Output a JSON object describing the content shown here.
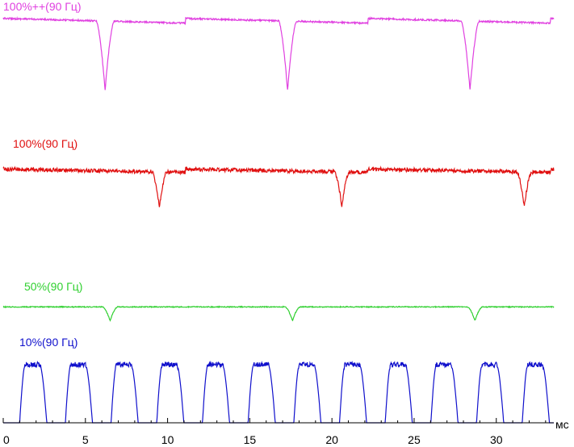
{
  "chart_data": {
    "type": "line",
    "title": "",
    "xlabel": "мс",
    "ylabel": "",
    "xlim": [
      0,
      33.5
    ],
    "x_ticks": [
      0,
      5,
      10,
      15,
      20,
      25,
      30
    ],
    "grid": false,
    "legend": "inline-above-each-trace",
    "series": [
      {
        "name": "100%++(90 Гц)",
        "color": "#e040e0",
        "pattern": "dip",
        "dip_times": [
          6.2,
          17.3,
          28.4
        ],
        "dip_width": 0.55,
        "base_left": 0.08,
        "base_right": 0.14,
        "dip_depth": 0.99,
        "noise": 0.02
      },
      {
        "name": "100%(90 Гц)",
        "color": "#e01010",
        "pattern": "dip",
        "dip_times": [
          9.5,
          20.6,
          31.7
        ],
        "dip_width": 0.45,
        "base_left": 0.22,
        "base_right": 0.27,
        "dip_depth": 0.8,
        "noise": 0.06
      },
      {
        "name": "50%(90 Гц)",
        "color": "#30d030",
        "pattern": "dip",
        "dip_times": [
          6.5,
          17.6,
          28.7
        ],
        "dip_width": 0.45,
        "base_left": 0.28,
        "base_right": 0.28,
        "dip_depth": 0.74,
        "noise": 0.03
      },
      {
        "name": "10%(90 Гц)",
        "color": "#1010cc",
        "pattern": "pulse",
        "pulse_period": 2.78,
        "pulse_first": 0.1,
        "pulse_high": 0.95,
        "pulse_low": 0.0,
        "noise": 0.04
      }
    ]
  }
}
